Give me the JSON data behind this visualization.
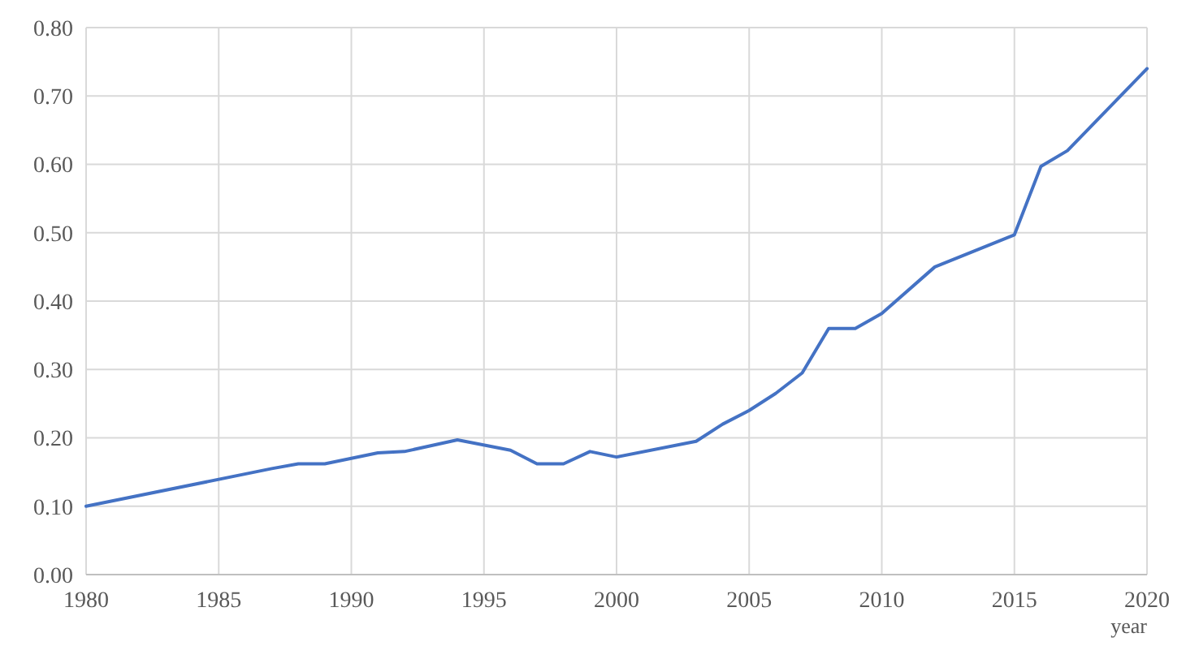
{
  "chart_data": {
    "type": "line",
    "xlabel": "year",
    "x": [
      1980,
      1987,
      1988,
      1989,
      1991,
      1992,
      1994,
      1996,
      1997,
      1998,
      1999,
      2000,
      2003,
      2004,
      2005,
      2006,
      2007,
      2008,
      2009,
      2010,
      2012,
      2015,
      2016,
      2017,
      2020
    ],
    "series": [
      {
        "color": "#4472c4",
        "values": [
          0.1,
          0.155,
          0.162,
          0.162,
          0.178,
          0.18,
          0.197,
          0.182,
          0.162,
          0.162,
          0.18,
          0.172,
          0.195,
          0.22,
          0.24,
          0.265,
          0.295,
          0.36,
          0.36,
          0.382,
          0.45,
          0.497,
          0.597,
          0.62,
          0.74
        ]
      }
    ],
    "xlim": [
      1980,
      2020
    ],
    "xticks": [
      1980,
      1985,
      1990,
      1995,
      2000,
      2005,
      2010,
      2015,
      2020
    ],
    "ylim": [
      0,
      0.8
    ],
    "yticks": [
      {
        "value": 0,
        "label": "0.00"
      },
      {
        "value": 0.1,
        "label": "0.10"
      },
      {
        "value": 0.2,
        "label": "0.20"
      },
      {
        "value": 0.3,
        "label": "0.30"
      },
      {
        "value": 0.4,
        "label": "0.40"
      },
      {
        "value": 0.5,
        "label": "0.50"
      },
      {
        "value": 0.6,
        "label": "0.60"
      },
      {
        "value": 0.7,
        "label": "0.70"
      },
      {
        "value": 0.8,
        "label": "0.80"
      }
    ],
    "grid": true,
    "marker": "none",
    "line_style": "solid"
  }
}
